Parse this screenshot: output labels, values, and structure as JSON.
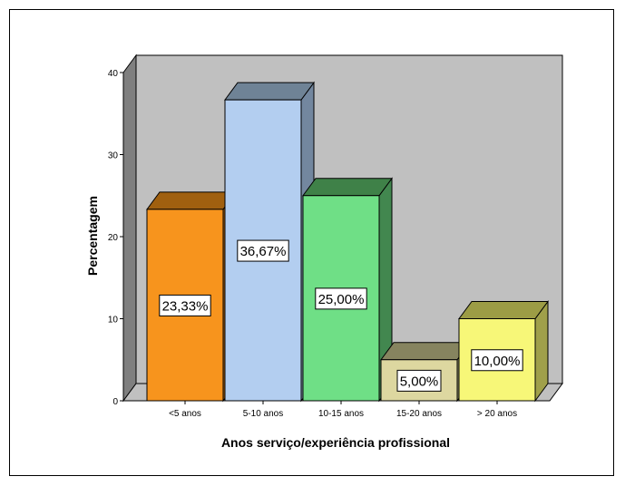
{
  "chart_data": {
    "type": "bar",
    "xlabel": "Anos serviço/experiência profissional",
    "ylabel": "Percentagem",
    "ylim": [
      0,
      40
    ],
    "yticks": [
      "0",
      "10",
      "20",
      "30",
      "40"
    ],
    "grid": false,
    "legend": "none",
    "categories": [
      "<5 anos",
      "5-10 anos",
      "10-15 anos",
      "15-20 anos",
      "> 20 anos"
    ],
    "values": [
      23.33,
      36.67,
      25.0,
      5.0,
      10.0
    ],
    "data_labels": [
      "23,33%",
      "36,67%",
      "25,00%",
      "5,00%",
      "10,00%"
    ],
    "colors": [
      "#f7941d",
      "#b3cef0",
      "#6fdf86",
      "#ddd7a0",
      "#f7f778"
    ],
    "side_colors": [
      "#9e5b10",
      "#73879f",
      "#42874f",
      "#8c8a62",
      "#a0a04a"
    ],
    "top_colors": [
      "#a0600f",
      "#6f8396",
      "#3f8148",
      "#86845f",
      "#9c9c45"
    ],
    "wall_color": "#c0c0c0",
    "side_wall_color": "#7f7f7f",
    "floor_color": "#c0c0c0"
  }
}
